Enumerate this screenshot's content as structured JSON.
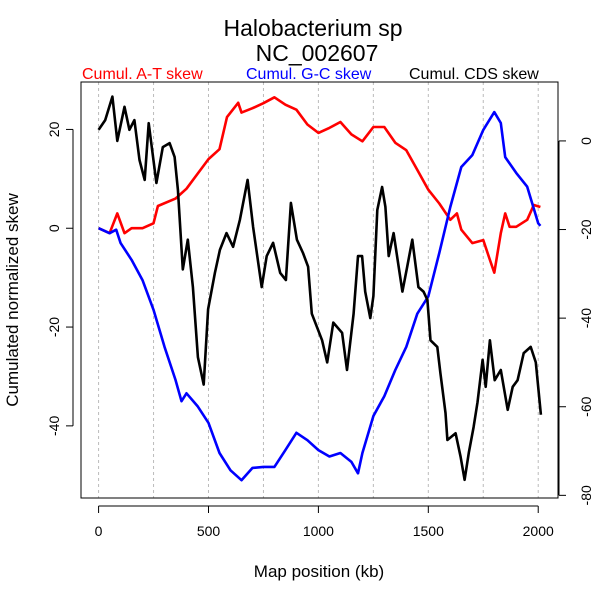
{
  "chart_data": {
    "type": "line",
    "title": "Halobacterium sp",
    "subtitle": "NC_002607",
    "xlabel": "Map position (kb)",
    "ylabel": "Cumulated normalized skew",
    "xlim": [
      -80,
      2090
    ],
    "ylim_left": [
      -54.6,
      29.6
    ],
    "ylim_right": [
      -80.6,
      13.3
    ],
    "x_ticks": [
      0,
      500,
      1000,
      1500,
      2000
    ],
    "y_ticks_left": [
      -40,
      -20,
      0,
      20
    ],
    "y_ticks_right": [
      -80,
      -60,
      -40,
      -20,
      0
    ],
    "grid_x": [
      0,
      250,
      500,
      750,
      1000,
      1250,
      1500,
      1750,
      2000
    ],
    "legend_placement": "top",
    "series": [
      {
        "name": "Cumul. A-T skew",
        "color": "#ff0000",
        "axis": "left",
        "x": [
          0,
          50,
          85,
          118,
          150,
          200,
          250,
          270,
          350,
          400,
          450,
          500,
          550,
          584,
          635,
          650,
          700,
          750,
          800,
          850,
          900,
          950,
          1000,
          1050,
          1100,
          1150,
          1200,
          1250,
          1300,
          1350,
          1400,
          1450,
          1500,
          1550,
          1600,
          1630,
          1650,
          1700,
          1750,
          1780,
          1800,
          1830,
          1850,
          1870,
          1900,
          1950,
          1980,
          2010
        ],
        "y": [
          0,
          -1,
          3,
          -1,
          0,
          0,
          1,
          4.5,
          6,
          8,
          11,
          14,
          16,
          22.5,
          25.4,
          23.4,
          24.3,
          25.3,
          26.5,
          25,
          24,
          21,
          19.3,
          20.3,
          21.5,
          19,
          17.6,
          20.5,
          20.5,
          17.3,
          15.8,
          11.8,
          7.8,
          5,
          1.7,
          3,
          -0.3,
          -3,
          -2.4,
          -6.4,
          -9,
          -1,
          3,
          0.3,
          0.3,
          1.7,
          4.7,
          4.3
        ]
      },
      {
        "name": "Cumul. G-C skew",
        "color": "#0000ff",
        "axis": "left",
        "x": [
          0,
          50,
          80,
          100,
          150,
          200,
          250,
          300,
          350,
          377,
          400,
          450,
          500,
          550,
          600,
          650,
          700,
          750,
          800,
          850,
          900,
          950,
          1000,
          1050,
          1100,
          1150,
          1180,
          1200,
          1250,
          1300,
          1350,
          1400,
          1450,
          1500,
          1550,
          1600,
          1650,
          1700,
          1750,
          1800,
          1830,
          1850,
          1900,
          1950,
          2000,
          2010
        ],
        "y": [
          0,
          -1,
          -0.3,
          -3,
          -6.4,
          -10.5,
          -16.5,
          -24,
          -30.7,
          -35,
          -33.4,
          -36,
          -39.4,
          -45.5,
          -49,
          -51,
          -48.5,
          -48.3,
          -48.3,
          -44.9,
          -41.4,
          -42.9,
          -44.9,
          -46.2,
          -45.5,
          -47.3,
          -49.6,
          -45.5,
          -38,
          -34,
          -28.7,
          -24,
          -17.3,
          -13.8,
          -5,
          4.3,
          12.4,
          14.8,
          19.9,
          23.5,
          21.3,
          14.4,
          11.2,
          8.4,
          1,
          0.5
        ]
      },
      {
        "name": "Cumul. CDS skew",
        "color": "#000000",
        "axis": "right",
        "x": [
          0,
          30,
          63,
          85,
          118,
          140,
          163,
          186,
          210,
          228,
          263,
          292,
          323,
          346,
          361,
          383,
          406,
          429,
          452,
          478,
          498,
          529,
          552,
          582,
          612,
          643,
          678,
          703,
          742,
          765,
          794,
          826,
          852,
          875,
          902,
          930,
          953,
          970,
          1017,
          1040,
          1068,
          1108,
          1130,
          1160,
          1180,
          1199,
          1213,
          1236,
          1250,
          1268,
          1290,
          1305,
          1320,
          1342,
          1382,
          1404,
          1427,
          1455,
          1478,
          1496,
          1510,
          1541,
          1555,
          1578,
          1587,
          1624,
          1647,
          1665,
          1684,
          1706,
          1724,
          1747,
          1761,
          1780,
          1802,
          1830,
          1861,
          1884,
          1906,
          1934,
          1966,
          1989,
          2012
        ],
        "y": [
          2.5,
          4.7,
          10,
          0,
          7.7,
          2.5,
          4.7,
          -4.3,
          -8.8,
          4,
          -9.5,
          -1.4,
          -0.5,
          -3.6,
          -11,
          -29,
          -22.3,
          -33,
          -48.8,
          -55,
          -38,
          -29.8,
          -24.6,
          -20.8,
          -23.9,
          -17.8,
          -8.8,
          -19.4,
          -33,
          -26,
          -23,
          -29.8,
          -31.4,
          -14,
          -22.3,
          -25.3,
          -28.4,
          -39,
          -45,
          -50,
          -41,
          -43.3,
          -51.7,
          -39,
          -26,
          -26,
          -34,
          -40,
          -35,
          -15.6,
          -10.4,
          -14.9,
          -26,
          -20.8,
          -34,
          -28.4,
          -22.3,
          -33,
          -34,
          -35.9,
          -45,
          -46.5,
          -52.4,
          -61.4,
          -67.5,
          -66,
          -71.3,
          -76.5,
          -70.4,
          -64.6,
          -59,
          -49.4,
          -55.5,
          -45,
          -54,
          -51.7,
          -60.7,
          -55.5,
          -54,
          -47.9,
          -46.5,
          -50,
          -61.8
        ]
      }
    ]
  }
}
